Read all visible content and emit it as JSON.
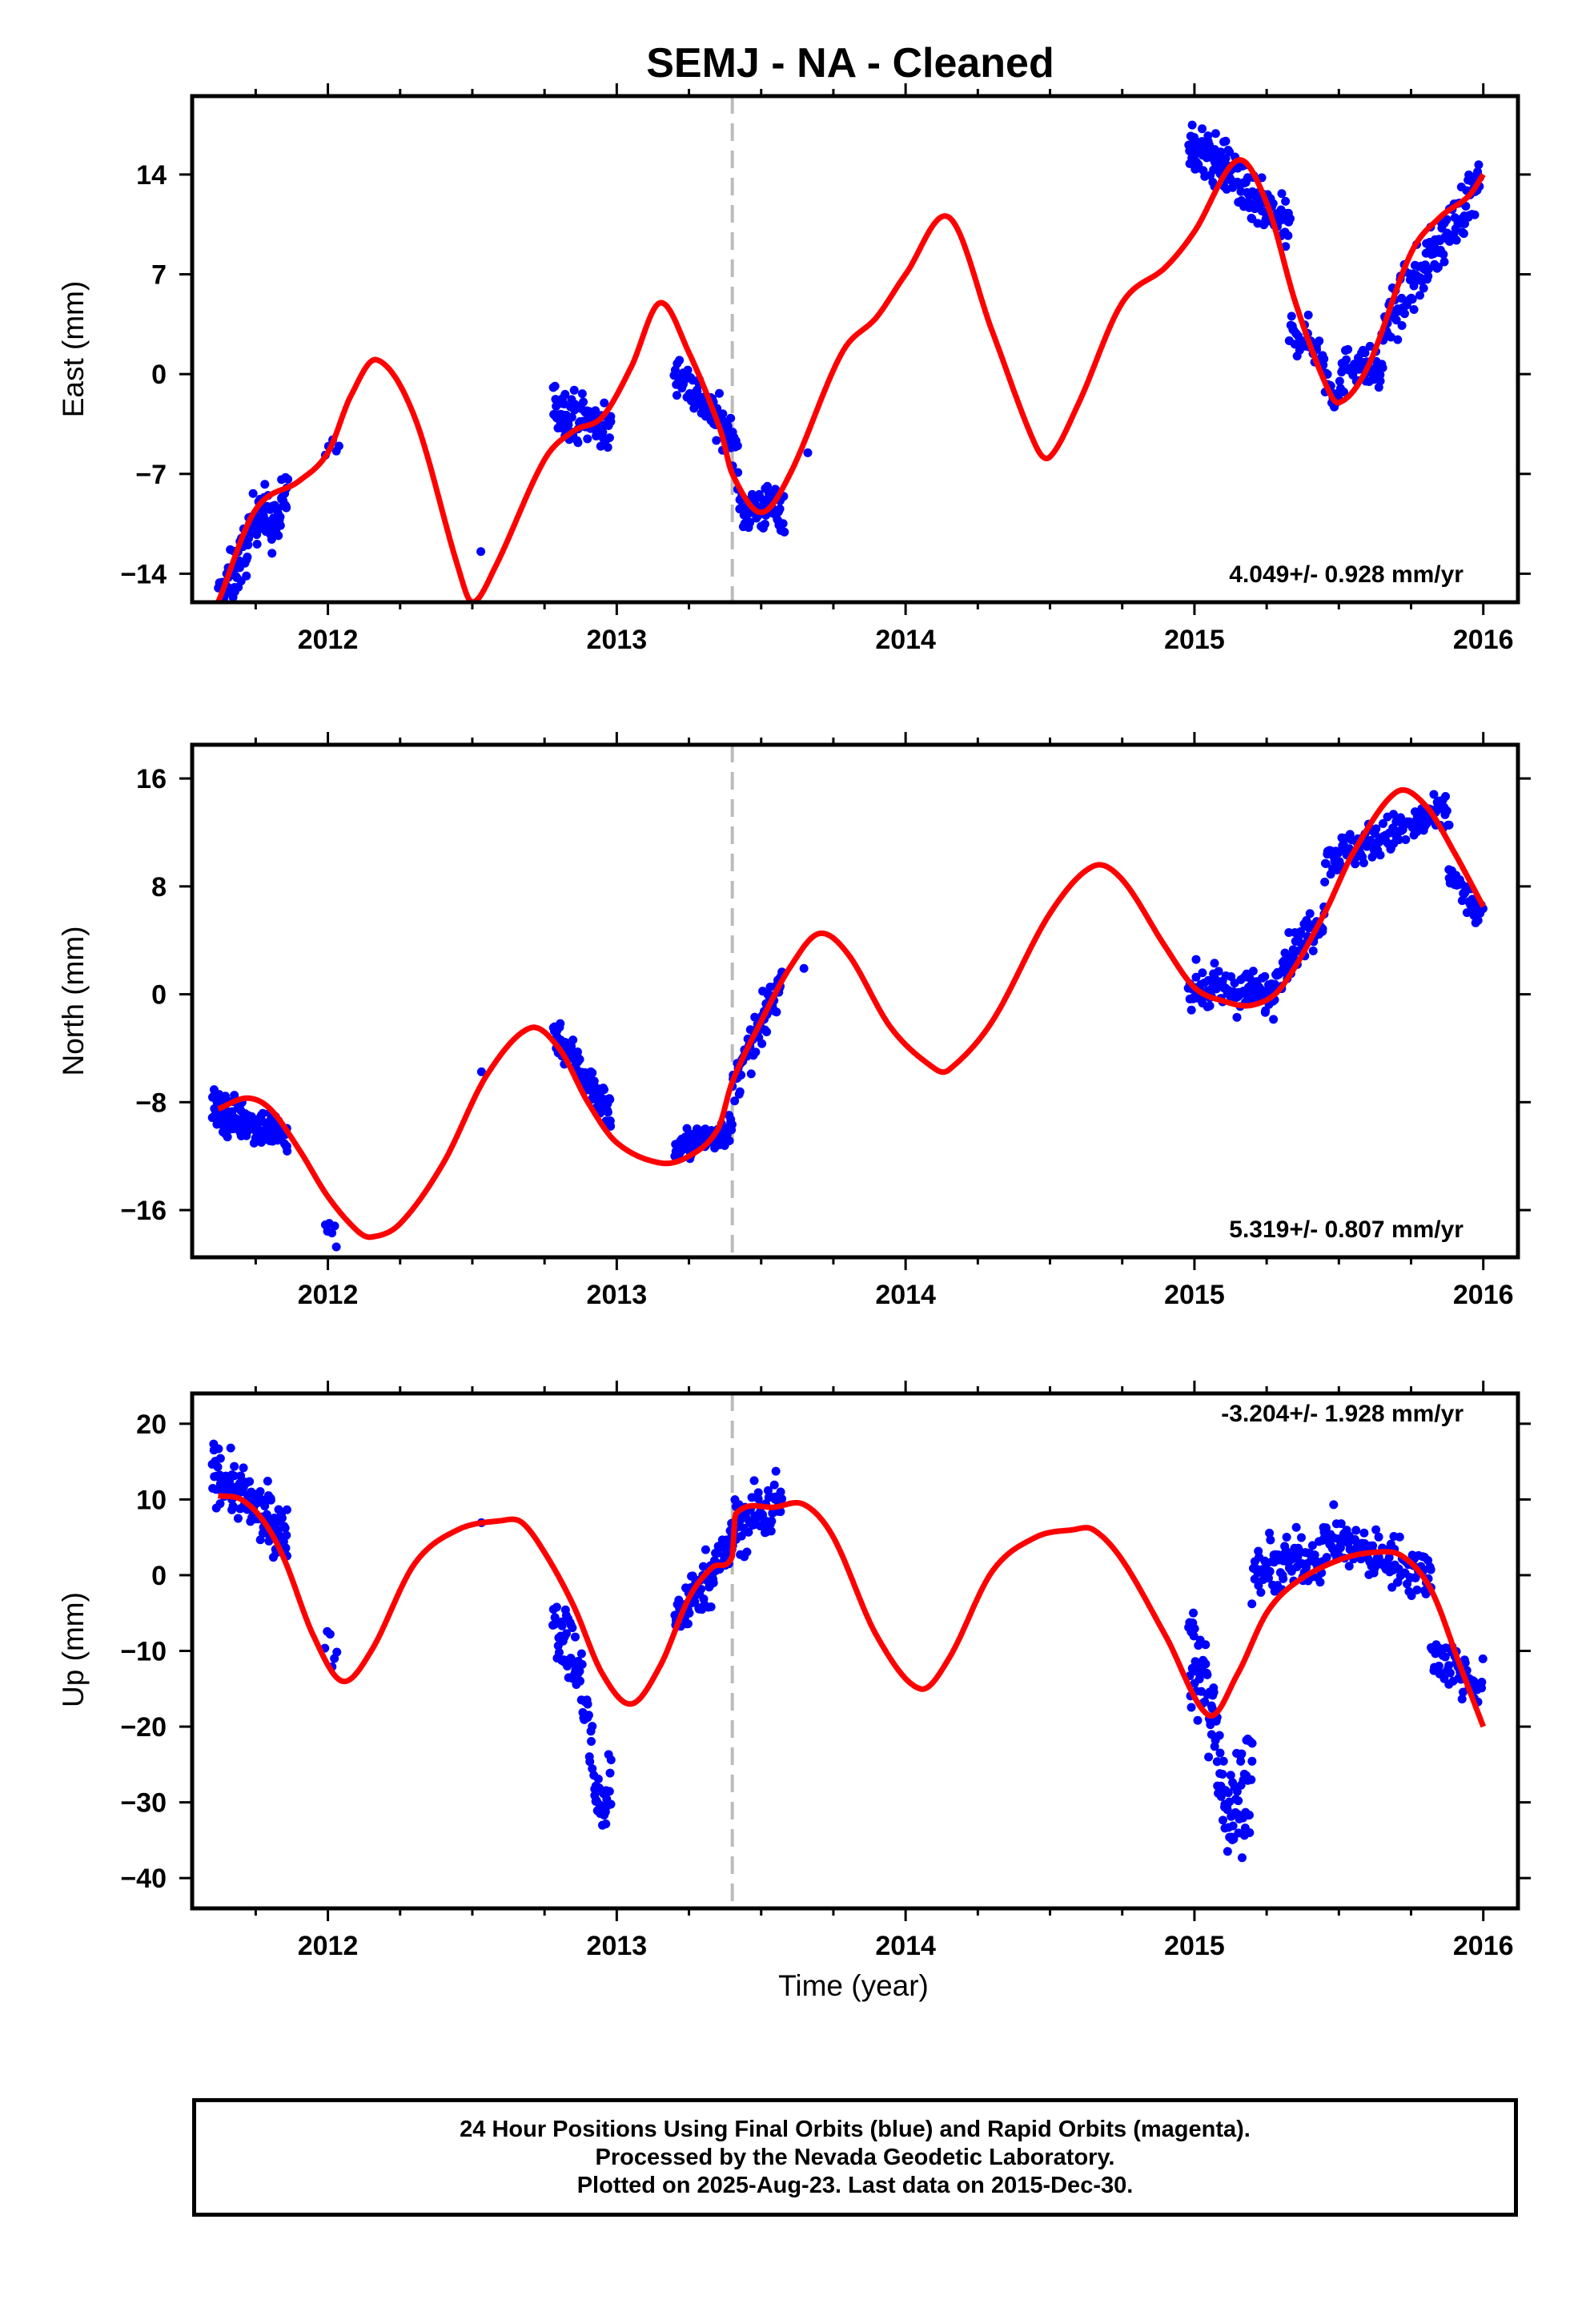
{
  "title": "SEMJ  - NA - Cleaned",
  "colors": {
    "data": "#0000ff",
    "model": "#ff0000",
    "step": "#bbbbbb",
    "frame": "#000000"
  },
  "xaxis_label": "Time (year)",
  "footer": {
    "line1": "24 Hour Positions Using Final Orbits (blue) and Rapid Orbits (magenta).",
    "line2": "Processed by the Nevada Geodetic Laboratory.",
    "line3": "Plotted on 2025-Aug-23. Last data on 2015-Dec-30."
  },
  "chart_data": [
    {
      "type": "scatter",
      "name_panel": "east",
      "ylabel": "East (mm)",
      "rate_label": "4.049+/- 0.928 mm/yr",
      "xlim": [
        2011.53,
        2016.12
      ],
      "ylim": [
        -16,
        19.5
      ],
      "xticks": [
        2012,
        2013,
        2014,
        2015,
        2016
      ],
      "xtick_labels": [
        "2012",
        "2013",
        "2014",
        "2015",
        "2016"
      ],
      "yticks": [
        -14,
        -7,
        0,
        7,
        14
      ],
      "ytick_labels": [
        "−14",
        "−7",
        "0",
        "7",
        "14"
      ],
      "step_epoch": 2013.4,
      "rate": 4.049,
      "model_knots": [
        [
          2011.62,
          -16.0
        ],
        [
          2011.75,
          -9.5
        ],
        [
          2011.9,
          -7.5
        ],
        [
          2012.0,
          -5.5
        ],
        [
          2012.08,
          -1.5
        ],
        [
          2012.17,
          1.0
        ],
        [
          2012.3,
          -3.0
        ],
        [
          2012.45,
          -13.5
        ],
        [
          2012.5,
          -16.0
        ],
        [
          2012.58,
          -13.5
        ],
        [
          2012.75,
          -6.0
        ],
        [
          2012.85,
          -4.0
        ],
        [
          2012.95,
          -3.0
        ],
        [
          2013.05,
          0.5
        ],
        [
          2013.15,
          5.0
        ],
        [
          2013.25,
          1.5
        ],
        [
          2013.36,
          -4.0
        ],
        [
          2013.4,
          -7.0
        ],
        [
          2013.5,
          -9.7
        ],
        [
          2013.6,
          -7.0
        ],
        [
          2013.78,
          1.5
        ],
        [
          2013.9,
          4.0
        ],
        [
          2014.0,
          7.0
        ],
        [
          2014.15,
          11.0
        ],
        [
          2014.3,
          3.0
        ],
        [
          2014.45,
          -5.0
        ],
        [
          2014.5,
          -5.8
        ],
        [
          2014.6,
          -2.0
        ],
        [
          2014.75,
          5.0
        ],
        [
          2014.9,
          7.5
        ],
        [
          2015.0,
          10.0
        ],
        [
          2015.15,
          15.0
        ],
        [
          2015.25,
          12.0
        ],
        [
          2015.35,
          5.0
        ],
        [
          2015.45,
          -0.5
        ],
        [
          2015.5,
          -2.0
        ],
        [
          2015.6,
          0.5
        ],
        [
          2015.75,
          8.5
        ],
        [
          2015.85,
          11.0
        ],
        [
          2015.95,
          12.5
        ],
        [
          2016.0,
          14.0
        ]
      ],
      "data_clusters": [
        {
          "x": [
            2011.62,
            2011.86
          ],
          "y": [
            -16.0,
            -7.5
          ],
          "spread": 1.6,
          "n": 130,
          "bumps": [
            [
              2011.76,
              1.6
            ],
            [
              2011.82,
              -1.8
            ]
          ]
        },
        {
          "x": [
            2011.99,
            2012.04
          ],
          "y": [
            -5.2,
            -5.0
          ],
          "spread": 0.8,
          "n": 5
        },
        {
          "x": [
            2012.52,
            2012.54
          ],
          "y": [
            -12.5,
            -12.5
          ],
          "spread": 0.2,
          "n": 1
        },
        {
          "x": [
            2012.78,
            2012.98
          ],
          "y": [
            -2.2,
            -4.0
          ],
          "spread": 1.4,
          "n": 90
        },
        {
          "x": [
            2013.2,
            2013.42
          ],
          "y": [
            0.5,
            -5.0
          ],
          "spread": 1.3,
          "n": 90
        },
        {
          "x": [
            2013.42,
            2013.58
          ],
          "y": [
            -9.5,
            -9.3
          ],
          "spread": 1.4,
          "n": 70
        },
        {
          "x": [
            2013.65,
            2013.67
          ],
          "y": [
            -5.5,
            -5.5
          ],
          "spread": 0.2,
          "n": 1
        },
        {
          "x": [
            2014.98,
            2015.15
          ],
          "y": [
            16.0,
            14.0
          ],
          "spread": 1.5,
          "n": 90
        },
        {
          "x": [
            2015.15,
            2015.33
          ],
          "y": [
            13.0,
            10.0
          ],
          "spread": 1.5,
          "n": 80
        },
        {
          "x": [
            2015.33,
            2015.65
          ],
          "y": [
            3.0,
            0.0
          ],
          "spread": 1.2,
          "n": 110,
          "bumps": [
            [
              2015.48,
              -2.8
            ]
          ]
        },
        {
          "x": [
            2015.65,
            2015.99
          ],
          "y": [
            3.0,
            13.5
          ],
          "spread": 1.6,
          "n": 130
        }
      ]
    },
    {
      "type": "scatter",
      "name_panel": "north",
      "ylabel": "North (mm)",
      "rate_label": "5.319+/- 0.807 mm/yr",
      "xlim": [
        2011.53,
        2016.12
      ],
      "ylim": [
        -19.5,
        18.5
      ],
      "xticks": [
        2012,
        2013,
        2014,
        2015,
        2016
      ],
      "xtick_labels": [
        "2012",
        "2013",
        "2014",
        "2015",
        "2016"
      ],
      "yticks": [
        -16,
        -8,
        0,
        8,
        16
      ],
      "ytick_labels": [
        "−16",
        "−8",
        "0",
        "8",
        "16"
      ],
      "step_epoch": 2013.4,
      "rate": 5.319,
      "model_knots": [
        [
          2011.62,
          -8.5
        ],
        [
          2011.72,
          -7.7
        ],
        [
          2011.8,
          -8.5
        ],
        [
          2011.9,
          -11.5
        ],
        [
          2012.0,
          -15.0
        ],
        [
          2012.1,
          -17.5
        ],
        [
          2012.15,
          -18.0
        ],
        [
          2012.25,
          -17.0
        ],
        [
          2012.4,
          -12.5
        ],
        [
          2012.55,
          -6.0
        ],
        [
          2012.7,
          -2.5
        ],
        [
          2012.8,
          -4.0
        ],
        [
          2012.9,
          -8.0
        ],
        [
          2013.0,
          -11.0
        ],
        [
          2013.15,
          -12.5
        ],
        [
          2013.25,
          -12.0
        ],
        [
          2013.35,
          -10.0
        ],
        [
          2013.4,
          -6.5
        ],
        [
          2013.5,
          -2.0
        ],
        [
          2013.6,
          2.0
        ],
        [
          2013.7,
          4.5
        ],
        [
          2013.8,
          3.0
        ],
        [
          2013.95,
          -2.5
        ],
        [
          2014.1,
          -5.5
        ],
        [
          2014.15,
          -5.6
        ],
        [
          2014.3,
          -2.0
        ],
        [
          2014.5,
          6.0
        ],
        [
          2014.65,
          9.5
        ],
        [
          2014.75,
          8.5
        ],
        [
          2014.9,
          3.5
        ],
        [
          2015.0,
          0.5
        ],
        [
          2015.1,
          -0.5
        ],
        [
          2015.2,
          -0.8
        ],
        [
          2015.3,
          0.5
        ],
        [
          2015.45,
          6.0
        ],
        [
          2015.55,
          10.5
        ],
        [
          2015.7,
          15.0
        ],
        [
          2015.8,
          14.0
        ],
        [
          2015.9,
          10.5
        ],
        [
          2016.0,
          6.5
        ]
      ],
      "data_clusters": [
        {
          "x": [
            2011.6,
            2011.86
          ],
          "y": [
            -8.5,
            -10.5
          ],
          "spread": 1.2,
          "n": 140
        },
        {
          "x": [
            2011.99,
            2012.03
          ],
          "y": [
            -17.0,
            -18.5
          ],
          "spread": 1.2,
          "n": 6
        },
        {
          "x": [
            2012.52,
            2012.54
          ],
          "y": [
            -5.7,
            -5.7
          ],
          "spread": 0.2,
          "n": 1
        },
        {
          "x": [
            2012.78,
            2012.98
          ],
          "y": [
            -2.5,
            -9.0
          ],
          "spread": 1.2,
          "n": 90
        },
        {
          "x": [
            2013.2,
            2013.4
          ],
          "y": [
            -11.5,
            -10.0
          ],
          "spread": 0.9,
          "n": 90
        },
        {
          "x": [
            2013.4,
            2013.57
          ],
          "y": [
            -7.0,
            1.0
          ],
          "spread": 1.3,
          "n": 70
        },
        {
          "x": [
            2013.64,
            2013.66
          ],
          "y": [
            2.2,
            2.2
          ],
          "spread": 0.2,
          "n": 1
        },
        {
          "x": [
            2014.98,
            2015.28
          ],
          "y": [
            0.5,
            0.0
          ],
          "spread": 1.3,
          "n": 110
        },
        {
          "x": [
            2015.28,
            2015.45
          ],
          "y": [
            1.5,
            6.0
          ],
          "spread": 1.3,
          "n": 60
        },
        {
          "x": [
            2015.45,
            2015.88
          ],
          "y": [
            10.0,
            13.5
          ],
          "spread": 1.2,
          "n": 140
        },
        {
          "x": [
            2015.88,
            2016.0
          ],
          "y": [
            9.0,
            5.5
          ],
          "spread": 1.0,
          "n": 40
        }
      ]
    },
    {
      "type": "scatter",
      "name_panel": "up",
      "ylabel": "Up (mm)",
      "rate_label": "-3.204+/- 1.928 mm/yr",
      "xlabel": "Time (year)",
      "xlim": [
        2011.53,
        2016.12
      ],
      "ylim": [
        -44,
        24
      ],
      "xticks": [
        2012,
        2013,
        2014,
        2015,
        2016
      ],
      "xtick_labels": [
        "2012",
        "2013",
        "2014",
        "2015",
        "2016"
      ],
      "yticks": [
        -40,
        -30,
        -20,
        -10,
        0,
        10,
        20
      ],
      "ytick_labels": [
        "−40",
        "−30",
        "−20",
        "−10",
        "0",
        "10",
        "20"
      ],
      "step_epoch": 2013.4,
      "rate": -3.204,
      "model_knots": [
        [
          2011.62,
          10.5
        ],
        [
          2011.7,
          10.0
        ],
        [
          2011.78,
          7.0
        ],
        [
          2011.85,
          2.0
        ],
        [
          2011.95,
          -8.0
        ],
        [
          2012.05,
          -14.0
        ],
        [
          2012.15,
          -10.0
        ],
        [
          2012.3,
          1.5
        ],
        [
          2012.45,
          6.0
        ],
        [
          2012.6,
          7.2
        ],
        [
          2012.67,
          7.0
        ],
        [
          2012.75,
          3.0
        ],
        [
          2012.85,
          -4.0
        ],
        [
          2012.95,
          -13.0
        ],
        [
          2013.05,
          -17.0
        ],
        [
          2013.15,
          -12.0
        ],
        [
          2013.25,
          -3.0
        ],
        [
          2013.33,
          1.0
        ],
        [
          2013.4,
          2.5
        ],
        [
          2013.41,
          8.0
        ],
        [
          2013.55,
          9.0
        ],
        [
          2013.65,
          9.3
        ],
        [
          2013.75,
          5.0
        ],
        [
          2013.9,
          -8.0
        ],
        [
          2014.05,
          -15.0
        ],
        [
          2014.15,
          -11.0
        ],
        [
          2014.3,
          0.5
        ],
        [
          2014.45,
          5.0
        ],
        [
          2014.58,
          6.0
        ],
        [
          2014.65,
          6.0
        ],
        [
          2014.75,
          2.0
        ],
        [
          2014.9,
          -8.0
        ],
        [
          2015.05,
          -18.5
        ],
        [
          2015.15,
          -13.0
        ],
        [
          2015.25,
          -5.0
        ],
        [
          2015.35,
          -1.0
        ],
        [
          2015.5,
          2.0
        ],
        [
          2015.62,
          3.0
        ],
        [
          2015.72,
          2.5
        ],
        [
          2015.82,
          -2.0
        ],
        [
          2015.92,
          -12.0
        ],
        [
          2016.0,
          -20.0
        ]
      ],
      "data_clusters": [
        {
          "x": [
            2011.6,
            2011.86
          ],
          "y": [
            14.0,
            5.0
          ],
          "spread": 3.0,
          "n": 140
        },
        {
          "x": [
            2011.99,
            2012.03
          ],
          "y": [
            -7.0,
            -11.0
          ],
          "spread": 2.0,
          "n": 6
        },
        {
          "x": [
            2012.52,
            2012.54
          ],
          "y": [
            7.0,
            7.0
          ],
          "spread": 0.2,
          "n": 1
        },
        {
          "x": [
            2012.78,
            2012.98
          ],
          "y": [
            -5.0,
            -22.0
          ],
          "spread": 4.0,
          "n": 90,
          "bumps": [
            [
              2012.94,
              -12.0
            ]
          ]
        },
        {
          "x": [
            2013.2,
            2013.4
          ],
          "y": [
            -6.0,
            4.0
          ],
          "spread": 3.0,
          "n": 90
        },
        {
          "x": [
            2013.4,
            2013.57
          ],
          "y": [
            6.0,
            10.0
          ],
          "spread": 3.5,
          "n": 70
        },
        {
          "x": [
            2014.98,
            2015.2
          ],
          "y": [
            -10.0,
            -28.0
          ],
          "spread": 6.0,
          "n": 110,
          "bumps": [
            [
              2015.12,
              -10.0
            ]
          ]
        },
        {
          "x": [
            2015.2,
            2015.45
          ],
          "y": [
            0.0,
            3.0
          ],
          "spread": 3.0,
          "n": 90
        },
        {
          "x": [
            2015.45,
            2015.82
          ],
          "y": [
            5.0,
            0.0
          ],
          "spread": 2.8,
          "n": 120
        },
        {
          "x": [
            2015.82,
            2016.0
          ],
          "y": [
            -10.0,
            -15.0
          ],
          "spread": 3.0,
          "n": 50
        }
      ]
    }
  ]
}
